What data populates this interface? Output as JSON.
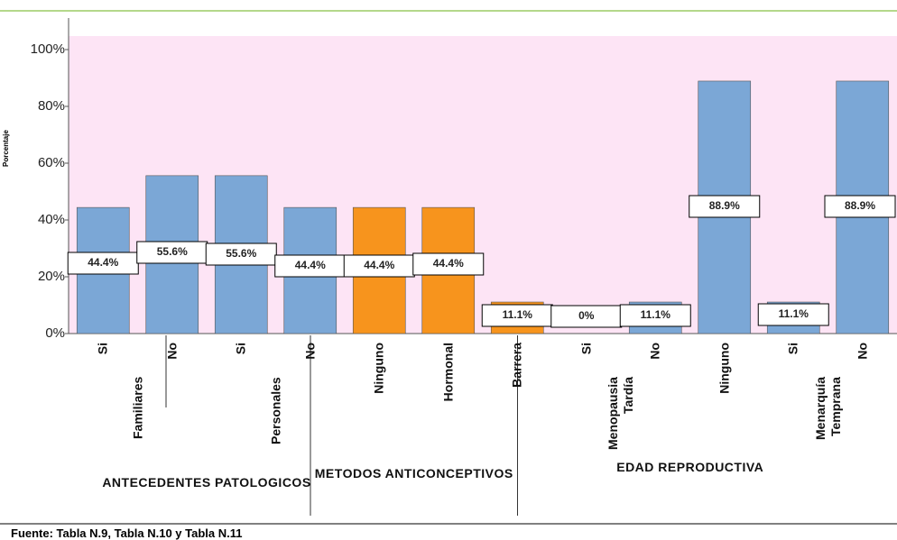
{
  "chart_data": {
    "type": "bar",
    "y_label": "Porcentaje",
    "groups": [
      {
        "label": "ANTECEDENTES PATOLOGICOS",
        "subgroups": [
          {
            "label": "Familiares",
            "categories": [
              "Si",
              "No"
            ]
          },
          {
            "label": "Personales",
            "categories": [
              "Si",
              "No"
            ]
          }
        ]
      },
      {
        "label": "METODOS ANTICONCEPTIVOS",
        "subgroups": [
          {
            "label": null,
            "categories": [
              "Ninguno",
              "Hormonal",
              "Barrera"
            ]
          }
        ]
      },
      {
        "label": "EDAD REPRODUCTIVA",
        "subgroups": [
          {
            "label": "Menopausia Tardía",
            "categories": [
              "Si",
              "No"
            ]
          },
          {
            "label": null,
            "categories": [
              "Ninguno"
            ]
          },
          {
            "label": "Menarquía Temprana",
            "categories": [
              "Si",
              "No"
            ]
          }
        ]
      }
    ],
    "values": [
      44.4,
      55.6,
      55.6,
      44.4,
      44.4,
      44.4,
      11.1,
      0,
      11.1,
      88.9,
      11.1,
      88.9
    ],
    "value_labels": [
      "44.4%",
      "55.6%",
      "55.6%",
      "44.4%",
      "44.4%",
      "44.4%",
      "11.1%",
      "0%",
      "11.1%",
      "88.9%",
      "11.1%",
      "88.9%"
    ],
    "group_colors": [
      "#7ba7d6",
      "#f7941d",
      "#7ba7d6"
    ],
    "ylim": [
      0,
      100
    ],
    "yticks": [
      {
        "value": 0,
        "label": "0%"
      },
      {
        "value": 20,
        "label": "20%"
      },
      {
        "value": 40,
        "label": "40%"
      },
      {
        "value": 60,
        "label": "60%"
      },
      {
        "value": 80,
        "label": "80%"
      },
      {
        "value": 100,
        "label": "100%"
      }
    ],
    "grid": false,
    "source": "Fuente: Tabla N.9, Tabla N.10 y Tabla N.11"
  }
}
